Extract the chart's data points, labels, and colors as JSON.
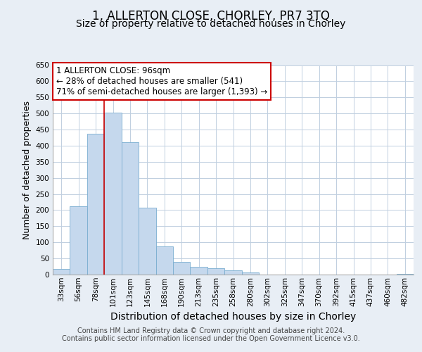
{
  "title": "1, ALLERTON CLOSE, CHORLEY, PR7 3TQ",
  "subtitle": "Size of property relative to detached houses in Chorley",
  "xlabel": "Distribution of detached houses by size in Chorley",
  "ylabel": "Number of detached properties",
  "categories": [
    "33sqm",
    "56sqm",
    "78sqm",
    "101sqm",
    "123sqm",
    "145sqm",
    "168sqm",
    "190sqm",
    "213sqm",
    "235sqm",
    "258sqm",
    "280sqm",
    "302sqm",
    "325sqm",
    "347sqm",
    "370sqm",
    "392sqm",
    "415sqm",
    "437sqm",
    "460sqm",
    "482sqm"
  ],
  "values": [
    18,
    213,
    437,
    502,
    410,
    207,
    87,
    40,
    23,
    19,
    13,
    6,
    1,
    0,
    0,
    0,
    0,
    0,
    0,
    0,
    2
  ],
  "bar_color": "#c5d8ed",
  "bar_edge_color": "#7aadd0",
  "vline_index": 3,
  "vline_color": "#cc0000",
  "ylim": [
    0,
    650
  ],
  "yticks": [
    0,
    50,
    100,
    150,
    200,
    250,
    300,
    350,
    400,
    450,
    500,
    550,
    600,
    650
  ],
  "annotation_box_text_line1": "1 ALLERTON CLOSE: 96sqm",
  "annotation_box_text_line2": "← 28% of detached houses are smaller (541)",
  "annotation_box_text_line3": "71% of semi-detached houses are larger (1,393) →",
  "annotation_box_color": "#ffffff",
  "annotation_box_edge_color": "#cc0000",
  "footer_line1": "Contains HM Land Registry data © Crown copyright and database right 2024.",
  "footer_line2": "Contains public sector information licensed under the Open Government Licence v3.0.",
  "background_color": "#e8eef5",
  "plot_bg_color": "#ffffff",
  "grid_color": "#c0cfe0",
  "title_fontsize": 12,
  "subtitle_fontsize": 10,
  "axis_label_fontsize": 9,
  "tick_fontsize": 7.5,
  "footer_fontsize": 7,
  "annotation_fontsize": 8.5
}
